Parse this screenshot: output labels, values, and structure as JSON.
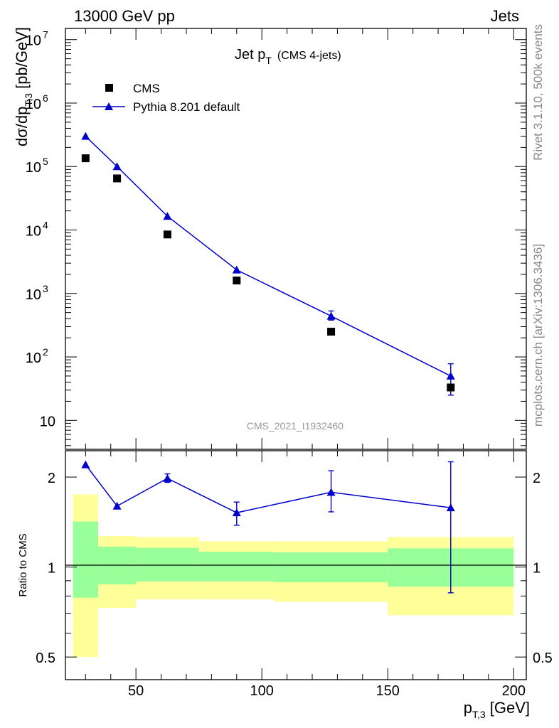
{
  "header": {
    "left": "13000 GeV pp",
    "right": "Jets"
  },
  "side_texts": {
    "top": "Rivet 3.1.10,  500k events",
    "bottom": "mcplots.cern.ch [arXiv:1306.3436]"
  },
  "watermark": "CMS_2021_I1932460",
  "colors": {
    "mc": "#0000cc",
    "band_inner": "#99ff99",
    "band_outer": "#ffff99",
    "data": "#000000"
  },
  "chart_data": [
    {
      "type": "scatter",
      "panel": "main",
      "title": {
        "main": "Jet p",
        "sub": "T",
        "suffix": "(CMS 4-jets)"
      },
      "ylabel": {
        "pre": "dσ/dp",
        "sub": "T,3",
        "post": " [pb/GeV]"
      },
      "yscale": "log",
      "ylim": [
        3.5,
        15000000
      ],
      "xlim": [
        22,
        205
      ],
      "ytick_labels": [
        {
          "value": 10,
          "text": "10"
        },
        {
          "value": 100,
          "base": "10",
          "exp": "2"
        },
        {
          "value": 1000,
          "base": "10",
          "exp": "3"
        },
        {
          "value": 10000,
          "base": "10",
          "exp": "4"
        },
        {
          "value": 100000,
          "base": "10",
          "exp": "5"
        },
        {
          "value": 1000000,
          "base": "10",
          "exp": "6"
        },
        {
          "value": 10000000,
          "base": "10",
          "exp": "7"
        }
      ],
      "legend": {
        "position": "top-left",
        "entries": [
          "CMS",
          "Pythia 8.201 default"
        ]
      },
      "series": [
        {
          "name": "CMS",
          "marker": "square",
          "x": [
            30,
            42.5,
            62.5,
            90,
            127.5,
            175
          ],
          "y": [
            135000,
            65000,
            8500,
            1600,
            250,
            33
          ]
        },
        {
          "name": "Pythia 8.201 default",
          "marker": "triangle",
          "line": true,
          "x": [
            30,
            42.5,
            62.5,
            90,
            127.5,
            175
          ],
          "y": [
            300000,
            100000,
            16500,
            2350,
            440,
            50
          ],
          "err_low": [
            300000,
            100000,
            16500,
            2350,
            380,
            25
          ],
          "err_high": [
            300000,
            100000,
            16500,
            2350,
            530,
            78
          ]
        }
      ]
    },
    {
      "type": "scatter",
      "panel": "ratio",
      "ylabel": "Ratio to CMS",
      "yscale": "log",
      "ylim": [
        0.42,
        2.45
      ],
      "xlim": [
        22,
        205
      ],
      "xlabel": {
        "pre": "p",
        "sub": "T,3",
        "post": " [GeV]"
      },
      "xticks": [
        50,
        100,
        150,
        200
      ],
      "ytick_labels": [
        {
          "value": 0.5,
          "text": "0.5"
        },
        {
          "value": 1,
          "text": "1"
        },
        {
          "value": 2,
          "text": "2"
        }
      ],
      "band_outer": [
        {
          "x0": 25,
          "x1": 35,
          "lo": 0.5,
          "hi": 1.75
        },
        {
          "x0": 35,
          "x1": 50,
          "lo": 0.73,
          "hi": 1.27
        },
        {
          "x0": 50,
          "x1": 75,
          "lo": 0.78,
          "hi": 1.26
        },
        {
          "x0": 75,
          "x1": 105,
          "lo": 0.78,
          "hi": 1.22
        },
        {
          "x0": 105,
          "x1": 150,
          "lo": 0.765,
          "hi": 1.22
        },
        {
          "x0": 150,
          "x1": 200,
          "lo": 0.69,
          "hi": 1.26
        }
      ],
      "band_inner": [
        {
          "x0": 25,
          "x1": 35,
          "lo": 0.79,
          "hi": 1.42
        },
        {
          "x0": 35,
          "x1": 50,
          "lo": 0.875,
          "hi": 1.17
        },
        {
          "x0": 50,
          "x1": 75,
          "lo": 0.895,
          "hi": 1.16
        },
        {
          "x0": 75,
          "x1": 105,
          "lo": 0.895,
          "hi": 1.125
        },
        {
          "x0": 105,
          "x1": 150,
          "lo": 0.89,
          "hi": 1.12
        },
        {
          "x0": 150,
          "x1": 200,
          "lo": 0.86,
          "hi": 1.155
        }
      ],
      "series": [
        {
          "name": "Pythia 8.201 default",
          "marker": "triangle",
          "line": true,
          "x": [
            30,
            42.5,
            62.5,
            90,
            127.5,
            175
          ],
          "y": [
            2.2,
            1.6,
            1.98,
            1.52,
            1.78,
            1.58
          ],
          "err_low": [
            2.2,
            1.6,
            1.92,
            1.38,
            1.53,
            0.82
          ],
          "err_high": [
            2.2,
            1.6,
            2.05,
            1.65,
            2.1,
            2.25
          ]
        }
      ]
    }
  ]
}
